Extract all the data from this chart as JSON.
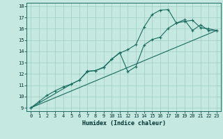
{
  "title": "",
  "xlabel": "Humidex (Indice chaleur)",
  "bg_color": "#c5e8e0",
  "grid_color": "#9eccc4",
  "line_color": "#1a6b60",
  "xlim": [
    -0.5,
    23.5
  ],
  "ylim": [
    8.7,
    18.3
  ],
  "xticks": [
    0,
    1,
    2,
    3,
    4,
    5,
    6,
    7,
    8,
    9,
    10,
    11,
    12,
    13,
    14,
    15,
    16,
    17,
    18,
    19,
    20,
    21,
    22,
    23
  ],
  "yticks": [
    9,
    10,
    11,
    12,
    13,
    14,
    15,
    16,
    17,
    18
  ],
  "line1_x": [
    0,
    1,
    2,
    3,
    4,
    5,
    6,
    7,
    8,
    9,
    10,
    11,
    12,
    13,
    14,
    15,
    16,
    17,
    18,
    19,
    20,
    21,
    22,
    23
  ],
  "line1_y": [
    9.0,
    9.55,
    10.1,
    10.5,
    10.85,
    11.1,
    11.45,
    12.2,
    12.3,
    12.55,
    13.3,
    13.85,
    14.15,
    14.6,
    16.15,
    17.25,
    17.65,
    17.7,
    16.5,
    16.65,
    16.75,
    16.1,
    16.0,
    15.85
  ],
  "line2_x": [
    0,
    5,
    6,
    7,
    8,
    9,
    10,
    11,
    12,
    13,
    14,
    15,
    16,
    17,
    18,
    19,
    20,
    21,
    22,
    23
  ],
  "line2_y": [
    9.0,
    11.1,
    11.45,
    12.25,
    12.3,
    12.6,
    13.3,
    13.9,
    12.2,
    12.65,
    14.55,
    15.05,
    15.25,
    16.05,
    16.5,
    16.8,
    15.85,
    16.35,
    15.85,
    15.85
  ],
  "line3_x": [
    0,
    23
  ],
  "line3_y": [
    9.0,
    15.85
  ]
}
